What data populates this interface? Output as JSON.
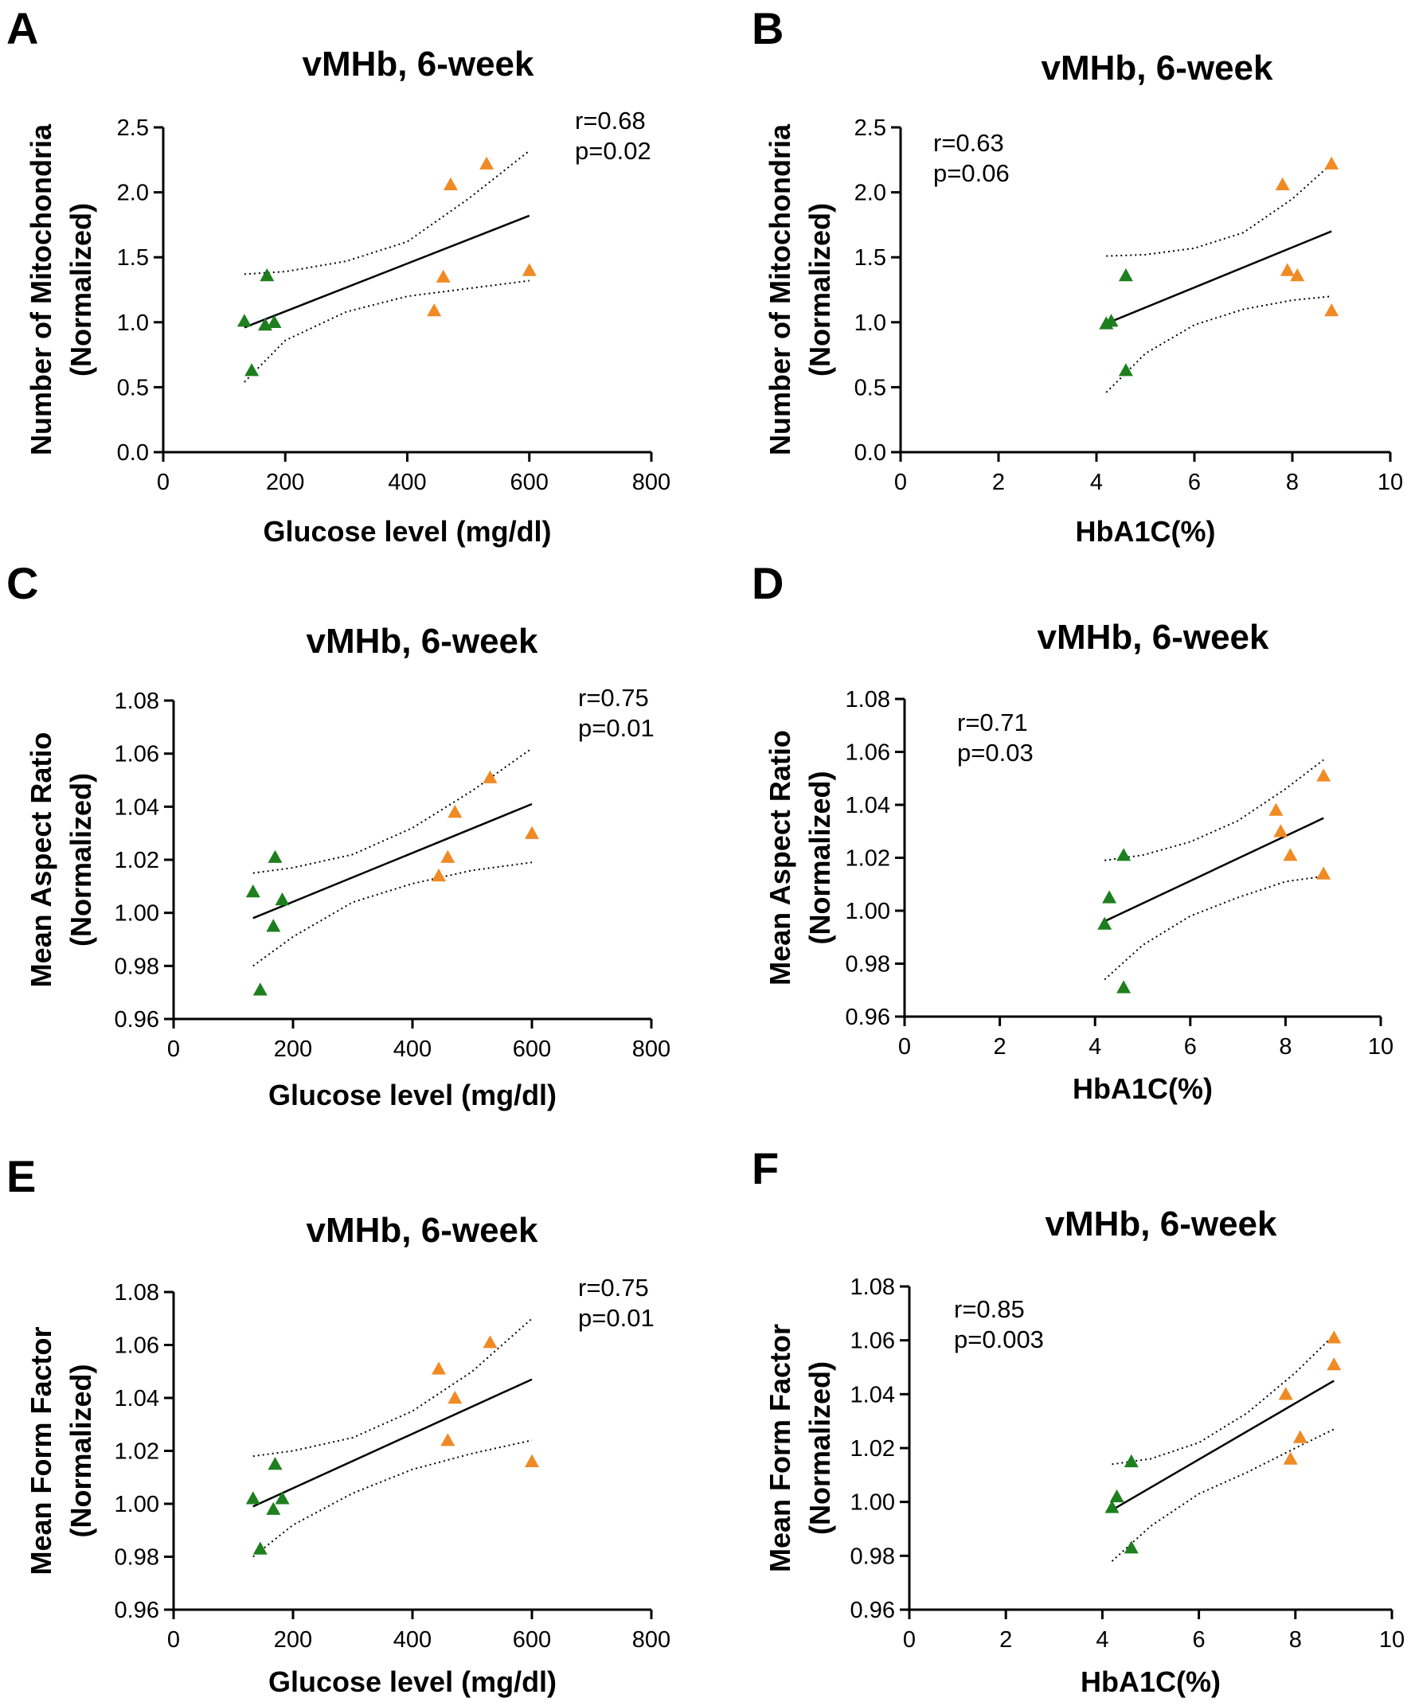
{
  "colors": {
    "green": "#1E7F1E",
    "orange": "#F08A24",
    "ink": "#000000"
  },
  "chart_data": [
    {
      "type": "scatter",
      "panel_label": "A",
      "title": "vMHb, 6-week",
      "xlabel": "Glucose level (mg/dl)",
      "ylabel": [
        "Number of Mitochondria",
        "(Normalized)"
      ],
      "xlim": [
        0,
        800
      ],
      "ylim": [
        0,
        2.5
      ],
      "xticks": [
        0,
        200,
        400,
        600,
        800
      ],
      "yticks": [
        0.0,
        0.5,
        1.0,
        1.5,
        2.0,
        2.5
      ],
      "ytick_labels": [
        "0.0",
        "0.5",
        "1.0",
        "1.5",
        "2.0",
        "2.5"
      ],
      "xtick_labels": [
        "0",
        "200",
        "400",
        "600",
        "800"
      ],
      "annotation": [
        "r=0.68",
        "p=0.02"
      ],
      "annotation_position": "top-right",
      "series": [
        {
          "name": "green",
          "color": "green",
          "x": [
            133,
            145,
            167,
            170,
            182
          ],
          "y": [
            1.01,
            0.63,
            0.98,
            1.36,
            1.0
          ]
        },
        {
          "name": "orange",
          "color": "orange",
          "x": [
            444,
            459,
            471,
            530,
            600
          ],
          "y": [
            1.09,
            1.35,
            2.06,
            2.22,
            1.4
          ]
        }
      ],
      "fit": {
        "x": [
          133,
          600
        ],
        "y": [
          0.96,
          1.82
        ]
      },
      "ci_upper": {
        "x": [
          133,
          200,
          300,
          400,
          500,
          600
        ],
        "y": [
          1.37,
          1.39,
          1.47,
          1.62,
          1.95,
          2.32
        ]
      },
      "ci_lower": {
        "x": [
          133,
          200,
          300,
          400,
          500,
          600
        ],
        "y": [
          0.54,
          0.86,
          1.08,
          1.2,
          1.26,
          1.32
        ]
      }
    },
    {
      "type": "scatter",
      "panel_label": "B",
      "title": "vMHb, 6-week",
      "xlabel": "HbA1C(%)",
      "ylabel": [
        "Number of Mitochondria",
        "(Normalized)"
      ],
      "xlim": [
        0,
        10
      ],
      "ylim": [
        0,
        2.5
      ],
      "xticks": [
        0,
        2,
        4,
        6,
        8,
        10
      ],
      "yticks": [
        0.0,
        0.5,
        1.0,
        1.5,
        2.0,
        2.5
      ],
      "ytick_labels": [
        "0.0",
        "0.5",
        "1.0",
        "1.5",
        "2.0",
        "2.5"
      ],
      "xtick_labels": [
        "0",
        "2",
        "4",
        "6",
        "8",
        "10"
      ],
      "annotation": [
        "r=0.63",
        "p=0.06"
      ],
      "annotation_position": "top-left",
      "series": [
        {
          "name": "green",
          "color": "green",
          "x": [
            4.2,
            4.3,
            4.6,
            4.6
          ],
          "y": [
            0.99,
            1.01,
            1.36,
            0.63
          ]
        },
        {
          "name": "orange",
          "color": "orange",
          "x": [
            7.8,
            7.9,
            8.1,
            8.8,
            8.8
          ],
          "y": [
            2.06,
            1.4,
            1.36,
            2.22,
            1.09
          ]
        }
      ],
      "fit": {
        "x": [
          4.2,
          8.8
        ],
        "y": [
          0.99,
          1.7
        ]
      },
      "ci_upper": {
        "x": [
          4.2,
          5.0,
          6.0,
          7.0,
          8.0,
          8.8
        ],
        "y": [
          1.51,
          1.52,
          1.57,
          1.69,
          1.95,
          2.22
        ]
      },
      "ci_lower": {
        "x": [
          4.2,
          5.0,
          6.0,
          7.0,
          8.0,
          8.8
        ],
        "y": [
          0.46,
          0.76,
          0.98,
          1.1,
          1.17,
          1.2
        ]
      }
    },
    {
      "type": "scatter",
      "panel_label": "C",
      "title": "vMHb, 6-week",
      "xlabel": "Glucose level (mg/dl)",
      "ylabel": [
        "Mean Aspect Ratio",
        "(Normalized)"
      ],
      "xlim": [
        0,
        800
      ],
      "ylim": [
        0.96,
        1.08
      ],
      "xticks": [
        0,
        200,
        400,
        600,
        800
      ],
      "yticks": [
        0.96,
        0.98,
        1.0,
        1.02,
        1.04,
        1.06,
        1.08
      ],
      "ytick_labels": [
        "0.96",
        "0.98",
        "1.00",
        "1.02",
        "1.04",
        "1.06",
        "1.08"
      ],
      "xtick_labels": [
        "0",
        "200",
        "400",
        "600",
        "800"
      ],
      "annotation": [
        "r=0.75",
        "p=0.01"
      ],
      "annotation_position": "top-right",
      "series": [
        {
          "name": "green",
          "color": "green",
          "x": [
            133,
            145,
            167,
            170,
            182
          ],
          "y": [
            1.008,
            0.971,
            0.995,
            1.021,
            1.005
          ]
        },
        {
          "name": "orange",
          "color": "orange",
          "x": [
            444,
            459,
            471,
            530,
            600
          ],
          "y": [
            1.014,
            1.021,
            1.038,
            1.051,
            1.03
          ]
        }
      ],
      "fit": {
        "x": [
          133,
          600
        ],
        "y": [
          0.998,
          1.041
        ]
      },
      "ci_upper": {
        "x": [
          133,
          200,
          300,
          400,
          500,
          600
        ],
        "y": [
          1.015,
          1.017,
          1.022,
          1.032,
          1.046,
          1.062
        ]
      },
      "ci_lower": {
        "x": [
          133,
          200,
          300,
          400,
          500,
          600
        ],
        "y": [
          0.98,
          0.991,
          1.004,
          1.011,
          1.016,
          1.019
        ]
      }
    },
    {
      "type": "scatter",
      "panel_label": "D",
      "title": "vMHb, 6-week",
      "xlabel": "HbA1C(%)",
      "ylabel": [
        "Mean Aspect Ratio",
        "(Normalized)"
      ],
      "xlim": [
        0,
        10
      ],
      "ylim": [
        0.96,
        1.08
      ],
      "xticks": [
        0,
        2,
        4,
        6,
        8,
        10
      ],
      "yticks": [
        0.96,
        0.98,
        1.0,
        1.02,
        1.04,
        1.06,
        1.08
      ],
      "ytick_labels": [
        "0.96",
        "0.98",
        "1.00",
        "1.02",
        "1.04",
        "1.06",
        "1.08"
      ],
      "xtick_labels": [
        "0",
        "2",
        "4",
        "6",
        "8",
        "10"
      ],
      "annotation": [
        "r=0.71",
        "p=0.03"
      ],
      "annotation_position": "top-left",
      "series": [
        {
          "name": "green",
          "color": "green",
          "x": [
            4.2,
            4.3,
            4.6,
            4.6
          ],
          "y": [
            0.995,
            1.005,
            1.021,
            0.971
          ]
        },
        {
          "name": "orange",
          "color": "orange",
          "x": [
            7.8,
            7.9,
            8.1,
            8.8,
            8.8
          ],
          "y": [
            1.038,
            1.03,
            1.021,
            1.051,
            1.014
          ]
        }
      ],
      "fit": {
        "x": [
          4.2,
          8.8
        ],
        "y": [
          0.996,
          1.035
        ]
      },
      "ci_upper": {
        "x": [
          4.2,
          5.0,
          6.0,
          7.0,
          8.0,
          8.8
        ],
        "y": [
          1.019,
          1.021,
          1.026,
          1.034,
          1.046,
          1.057
        ]
      },
      "ci_lower": {
        "x": [
          4.2,
          5.0,
          6.0,
          7.0,
          8.0,
          8.8
        ],
        "y": [
          0.974,
          0.987,
          0.998,
          1.005,
          1.011,
          1.013
        ]
      }
    },
    {
      "type": "scatter",
      "panel_label": "E",
      "title": "vMHb, 6-week",
      "xlabel": "Glucose level (mg/dl)",
      "ylabel": [
        "Mean Form Factor",
        "(Normalized)"
      ],
      "xlim": [
        0,
        800
      ],
      "ylim": [
        0.96,
        1.08
      ],
      "xticks": [
        0,
        200,
        400,
        600,
        800
      ],
      "yticks": [
        0.96,
        0.98,
        1.0,
        1.02,
        1.04,
        1.06,
        1.08
      ],
      "ytick_labels": [
        "0.96",
        "0.98",
        "1.00",
        "1.02",
        "1.04",
        "1.06",
        "1.08"
      ],
      "xtick_labels": [
        "0",
        "200",
        "400",
        "600",
        "800"
      ],
      "annotation": [
        "r=0.75",
        "p=0.01"
      ],
      "annotation_position": "top-right",
      "series": [
        {
          "name": "green",
          "color": "green",
          "x": [
            133,
            145,
            167,
            170,
            182
          ],
          "y": [
            1.002,
            0.983,
            0.998,
            1.015,
            1.002
          ]
        },
        {
          "name": "orange",
          "color": "orange",
          "x": [
            444,
            459,
            471,
            530,
            600
          ],
          "y": [
            1.051,
            1.024,
            1.04,
            1.061,
            1.016
          ]
        }
      ],
      "fit": {
        "x": [
          133,
          600
        ],
        "y": [
          0.999,
          1.047
        ]
      },
      "ci_upper": {
        "x": [
          133,
          200,
          300,
          400,
          500,
          600
        ],
        "y": [
          1.018,
          1.02,
          1.025,
          1.035,
          1.05,
          1.07
        ]
      },
      "ci_lower": {
        "x": [
          133,
          200,
          300,
          400,
          500,
          600
        ],
        "y": [
          0.98,
          0.992,
          1.004,
          1.013,
          1.019,
          1.024
        ]
      }
    },
    {
      "type": "scatter",
      "panel_label": "F",
      "title": "vMHb, 6-week",
      "xlabel": "HbA1C(%)",
      "ylabel": [
        "Mean Form Factor",
        "(Normalized)"
      ],
      "xlim": [
        0,
        10
      ],
      "ylim": [
        0.96,
        1.08
      ],
      "xticks": [
        0,
        2,
        4,
        6,
        8,
        10
      ],
      "yticks": [
        0.96,
        0.98,
        1.0,
        1.02,
        1.04,
        1.06,
        1.08
      ],
      "ytick_labels": [
        "0.96",
        "0.98",
        "1.00",
        "1.02",
        "1.04",
        "1.06",
        "1.08"
      ],
      "xtick_labels": [
        "0",
        "2",
        "4",
        "6",
        "8",
        "10"
      ],
      "annotation": [
        "r=0.85",
        "p=0.003"
      ],
      "annotation_position": "top-left",
      "series": [
        {
          "name": "green",
          "color": "green",
          "x": [
            4.2,
            4.3,
            4.6,
            4.6
          ],
          "y": [
            0.998,
            1.002,
            1.015,
            0.983
          ]
        },
        {
          "name": "orange",
          "color": "orange",
          "x": [
            7.8,
            7.9,
            8.1,
            8.8,
            8.8
          ],
          "y": [
            1.04,
            1.016,
            1.024,
            1.061,
            1.051
          ]
        }
      ],
      "fit": {
        "x": [
          4.2,
          8.8
        ],
        "y": [
          0.997,
          1.045
        ]
      },
      "ci_upper": {
        "x": [
          4.2,
          5.0,
          6.0,
          7.0,
          8.0,
          8.8
        ],
        "y": [
          1.014,
          1.016,
          1.022,
          1.033,
          1.048,
          1.062
        ]
      },
      "ci_lower": {
        "x": [
          4.2,
          5.0,
          6.0,
          7.0,
          8.0,
          8.8
        ],
        "y": [
          0.978,
          0.991,
          1.003,
          1.011,
          1.02,
          1.027
        ]
      }
    }
  ]
}
